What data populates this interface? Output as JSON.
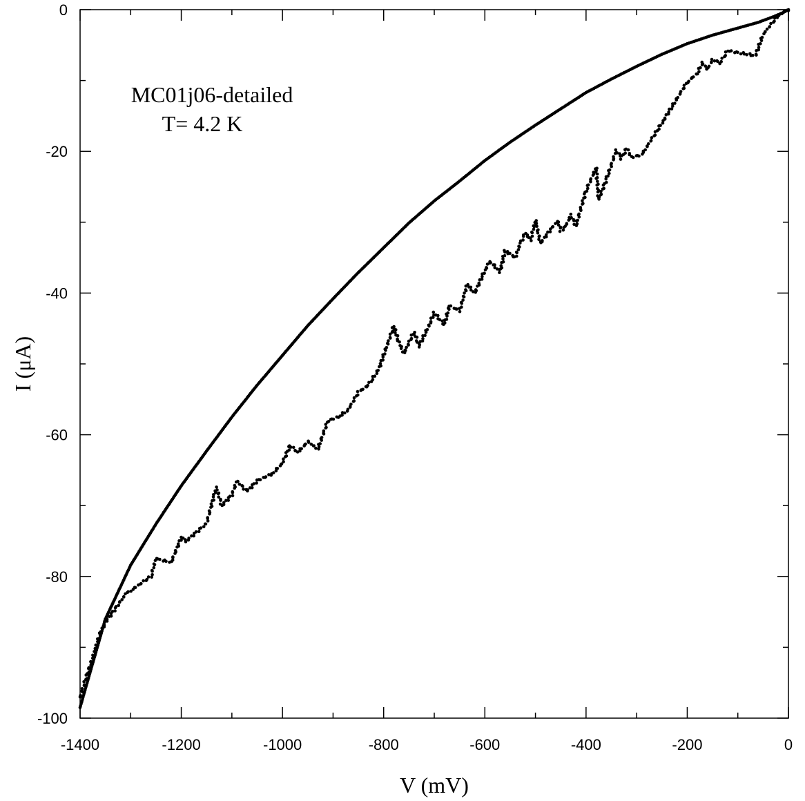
{
  "chart_data": {
    "type": "scatter",
    "title": "",
    "xlabel": "V (mV)",
    "ylabel": "I (μA)",
    "xlim": [
      -1400,
      0
    ],
    "ylim": [
      -100,
      0
    ],
    "grid": false,
    "x_major_ticks": [
      -1400,
      -1200,
      -1000,
      -800,
      -600,
      -400,
      -200,
      0
    ],
    "x_tick_labels": [
      "-1400",
      "-1200",
      "-1000",
      "-800",
      "-600",
      "-400",
      "-200",
      "0"
    ],
    "x_minor_ticks": [
      -1300,
      -1100,
      -900,
      -700,
      -500,
      -300,
      -100
    ],
    "y_major_ticks": [
      0,
      -20,
      -40,
      -60,
      -80,
      -100
    ],
    "y_tick_labels": [
      "0",
      "-20",
      "-40",
      "-60",
      "-80",
      "-100"
    ],
    "y_minor_ticks": [
      -10,
      -30,
      -50,
      -70,
      -90
    ],
    "annotations": [
      "MC01j06-detailed",
      "T= 4.2 K"
    ],
    "marker_color": "#000000",
    "series": [
      {
        "mode": "smooth",
        "x": [
          0,
          -10,
          -30,
          -60,
          -100,
          -150,
          -200,
          -250,
          -300,
          -350,
          -400,
          -450,
          -500,
          -550,
          -600,
          -650,
          -700,
          -750,
          -800,
          -850,
          -900,
          -950,
          -1000,
          -1050,
          -1100,
          -1150,
          -1200,
          -1250,
          -1300,
          -1350,
          -1400
        ],
        "y": [
          0,
          -0.4,
          -1.0,
          -1.8,
          -2.6,
          -3.6,
          -4.8,
          -6.3,
          -8.0,
          -9.8,
          -11.7,
          -14.0,
          -16.3,
          -18.7,
          -21.3,
          -24.2,
          -27.0,
          -30.1,
          -33.6,
          -37.1,
          -40.8,
          -44.6,
          -48.8,
          -53.0,
          -57.5,
          -62.3,
          -67.2,
          -72.6,
          -78.4,
          -86.0,
          -98.5
        ]
      },
      {
        "mode": "jagged",
        "x": [
          0,
          -20,
          -50,
          -65,
          -120,
          -135,
          -150,
          -160,
          -170,
          -180,
          -200,
          -250,
          -290,
          -310,
          -320,
          -330,
          -340,
          -360,
          -375,
          -380,
          -400,
          -420,
          -430,
          -440,
          -450,
          -455,
          -470,
          -490,
          -500,
          -510,
          -520,
          -530,
          -540,
          -560,
          -570,
          -590,
          -600,
          -620,
          -635,
          -650,
          -670,
          -680,
          -700,
          -710,
          -730,
          -740,
          -760,
          -770,
          -780,
          -810,
          -830,
          -850,
          -870,
          -890,
          -910,
          -930,
          -950,
          -970,
          -985,
          -1000,
          -1020,
          -1050,
          -1070,
          -1090,
          -1100,
          -1120,
          -1130,
          -1135,
          -1150,
          -1190,
          -1200,
          -1220,
          -1250,
          -1260,
          -1300,
          -1310,
          -1350,
          -1360,
          -1400
        ],
        "y": [
          0,
          -0.8,
          -3.5,
          -6.5,
          -5.8,
          -7.5,
          -7.0,
          -8.5,
          -7.5,
          -9.0,
          -10.2,
          -16.0,
          -20.5,
          -20.8,
          -19.6,
          -21.0,
          -19.8,
          -24.0,
          -26.8,
          -22.3,
          -25.5,
          -30.5,
          -29.0,
          -30.6,
          -31.2,
          -29.8,
          -31.0,
          -33.0,
          -29.8,
          -32.5,
          -31.5,
          -33.0,
          -35.0,
          -34.0,
          -37.0,
          -35.5,
          -36.8,
          -40.0,
          -38.8,
          -42.5,
          -41.8,
          -44.5,
          -42.8,
          -44.5,
          -47.5,
          -45.5,
          -48.5,
          -47.0,
          -44.7,
          -50.8,
          -53.0,
          -54.0,
          -56.5,
          -57.5,
          -58.0,
          -62.0,
          -61.0,
          -62.5,
          -61.5,
          -64.0,
          -65.5,
          -66.5,
          -68.0,
          -66.5,
          -68.5,
          -70.0,
          -67.5,
          -68.5,
          -72.5,
          -75.0,
          -74.5,
          -78.0,
          -77.5,
          -80.0,
          -82.0,
          -82.5,
          -86.5,
          -88.0,
          -97.0
        ]
      }
    ]
  }
}
